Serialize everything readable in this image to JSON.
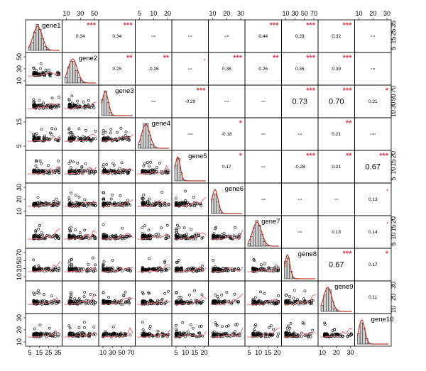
{
  "chart_data": {
    "type": "scatter",
    "variables": [
      "gene1",
      "gene2",
      "gene3",
      "gene4",
      "gene5",
      "gene6",
      "gene7",
      "gene8",
      "gene9",
      "gene10"
    ],
    "correlations": [
      {
        "row": 1,
        "col": 2,
        "r": "0.34",
        "stars": "***",
        "size": "small"
      },
      {
        "row": 1,
        "col": 3,
        "r": "0.34",
        "stars": "***",
        "size": "small"
      },
      {
        "row": 1,
        "col": 4,
        "r": "0.06",
        "stars": "",
        "size": "tiny"
      },
      {
        "row": 1,
        "col": 5,
        "r": "0.12",
        "stars": "",
        "size": "tiny"
      },
      {
        "row": 1,
        "col": 6,
        "r": "0.08",
        "stars": "",
        "size": "tiny"
      },
      {
        "row": 1,
        "col": 7,
        "r": "0.44",
        "stars": "***",
        "size": "small"
      },
      {
        "row": 1,
        "col": 8,
        "r": "0.28",
        "stars": "***",
        "size": "small"
      },
      {
        "row": 1,
        "col": 9,
        "r": "0.32",
        "stars": "***",
        "size": "small"
      },
      {
        "row": 1,
        "col": 10,
        "r": "0.01",
        "stars": "",
        "size": "tiny"
      },
      {
        "row": 2,
        "col": 3,
        "r": "0.25",
        "stars": "**",
        "size": "small"
      },
      {
        "row": 2,
        "col": 4,
        "r": "-0.26",
        "stars": "**",
        "size": "small"
      },
      {
        "row": 2,
        "col": 5,
        "r": "0.12",
        "stars": ".",
        "size": "tiny"
      },
      {
        "row": 2,
        "col": 6,
        "r": "0.36",
        "stars": "***",
        "size": "small"
      },
      {
        "row": 2,
        "col": 7,
        "r": "0.26",
        "stars": "**",
        "size": "small"
      },
      {
        "row": 2,
        "col": 8,
        "r": "0.36",
        "stars": "***",
        "size": "small"
      },
      {
        "row": 2,
        "col": 9,
        "r": "0.39",
        "stars": "***",
        "size": "small"
      },
      {
        "row": 2,
        "col": 10,
        "r": "0.08",
        "stars": "",
        "size": "tiny"
      },
      {
        "row": 3,
        "col": 4,
        "r": "0.05",
        "stars": "",
        "size": "tiny"
      },
      {
        "row": 3,
        "col": 5,
        "r": "-0.29",
        "stars": "***",
        "size": "small"
      },
      {
        "row": 3,
        "col": 6,
        "r": "0.04",
        "stars": "",
        "size": "tiny"
      },
      {
        "row": 3,
        "col": 7,
        "r": "0.04",
        "stars": "",
        "size": "tiny"
      },
      {
        "row": 3,
        "col": 8,
        "r": "0.73",
        "stars": "***",
        "size": "large"
      },
      {
        "row": 3,
        "col": 9,
        "r": "0.70",
        "stars": "***",
        "size": "large"
      },
      {
        "row": 3,
        "col": 10,
        "r": "0.21",
        "stars": "*",
        "size": "small"
      },
      {
        "row": 4,
        "col": 5,
        "r": "0.004",
        "stars": "",
        "size": "tiny"
      },
      {
        "row": 4,
        "col": 6,
        "r": "-0.18",
        "stars": "*",
        "size": "small"
      },
      {
        "row": 4,
        "col": 7,
        "r": "0.07",
        "stars": "",
        "size": "tiny"
      },
      {
        "row": 4,
        "col": 8,
        "r": "0.02",
        "stars": "",
        "size": "tiny"
      },
      {
        "row": 4,
        "col": 9,
        "r": "0.21",
        "stars": "**",
        "size": "small"
      },
      {
        "row": 4,
        "col": 10,
        "r": "0.015",
        "stars": "",
        "size": "tiny"
      },
      {
        "row": 5,
        "col": 6,
        "r": "0.17",
        "stars": "*",
        "size": "small"
      },
      {
        "row": 5,
        "col": 7,
        "r": "0.03",
        "stars": "",
        "size": "tiny"
      },
      {
        "row": 5,
        "col": 8,
        "r": "-0.28",
        "stars": "***",
        "size": "small"
      },
      {
        "row": 5,
        "col": 9,
        "r": "0.21",
        "stars": "**",
        "size": "small"
      },
      {
        "row": 5,
        "col": 10,
        "r": "0.67",
        "stars": "***",
        "size": "large"
      },
      {
        "row": 6,
        "col": 7,
        "r": "0.08",
        "stars": "",
        "size": "tiny"
      },
      {
        "row": 6,
        "col": 8,
        "r": "0.03",
        "stars": "",
        "size": "tiny"
      },
      {
        "row": 6,
        "col": 9,
        "r": "0.07",
        "stars": "",
        "size": "tiny"
      },
      {
        "row": 6,
        "col": 10,
        "r": "0.13",
        "stars": ".",
        "size": "small"
      },
      {
        "row": 7,
        "col": 8,
        "r": "0.06",
        "stars": "",
        "size": "tiny"
      },
      {
        "row": 7,
        "col": 9,
        "r": "0.13",
        "stars": "",
        "size": "small"
      },
      {
        "row": 7,
        "col": 10,
        "r": "0.14",
        "stars": ".",
        "size": "small"
      },
      {
        "row": 8,
        "col": 9,
        "r": "0.67",
        "stars": "***",
        "size": "large"
      },
      {
        "row": 8,
        "col": 10,
        "r": "0.17",
        "stars": "*",
        "size": "small"
      },
      {
        "row": 9,
        "col": 10,
        "r": "0.11",
        "stars": "",
        "size": "small"
      }
    ],
    "axis_ticks": {
      "top": [
        {
          "col": 2,
          "labels": [
            "10",
            "30",
            "50"
          ]
        },
        {
          "col": 4,
          "labels": [
            "5",
            "10",
            "20"
          ]
        },
        {
          "col": 6,
          "labels": [
            "10",
            "20",
            "30"
          ]
        },
        {
          "col": 8,
          "labels": [
            "10",
            "30",
            "50",
            "70"
          ]
        },
        {
          "col": 10,
          "labels": [
            "10",
            "20",
            "30"
          ]
        }
      ],
      "bottom": [
        {
          "col": 1,
          "labels": [
            "5",
            "15",
            "25",
            "35"
          ]
        },
        {
          "col": 3,
          "labels": [
            "10",
            "30",
            "50",
            "70"
          ]
        },
        {
          "col": 5,
          "labels": [
            "5",
            "10",
            "15",
            "20"
          ]
        },
        {
          "col": 7,
          "labels": [
            "5",
            "10",
            "15",
            "20"
          ]
        },
        {
          "col": 9,
          "labels": [
            "10",
            "20",
            "30"
          ]
        }
      ],
      "left": [
        {
          "row": 2,
          "labels": [
            "10",
            "30",
            "50"
          ]
        },
        {
          "row": 4,
          "labels": [
            "5",
            "15"
          ]
        },
        {
          "row": 6,
          "labels": [
            "10",
            "20",
            "30"
          ]
        },
        {
          "row": 8,
          "labels": [
            "10",
            "30",
            "50",
            "70"
          ]
        },
        {
          "row": 10,
          "labels": [
            "10",
            "20",
            "30"
          ]
        }
      ],
      "right": [
        {
          "row": 1,
          "labels": [
            "5",
            "15",
            "25",
            "35"
          ]
        },
        {
          "row": 3,
          "labels": [
            "10",
            "30",
            "50",
            "70"
          ]
        },
        {
          "row": 5,
          "labels": [
            "5",
            "10",
            "15",
            "20"
          ]
        },
        {
          "row": 7,
          "labels": [
            "5",
            "10",
            "15",
            "20"
          ]
        },
        {
          "row": 9,
          "labels": [
            "10",
            "20",
            "30"
          ]
        }
      ]
    },
    "colors": {
      "hist": "#cfcfcf",
      "density": "#c0392b",
      "smooth": "#e46a73",
      "stars": "#d6404f"
    }
  }
}
